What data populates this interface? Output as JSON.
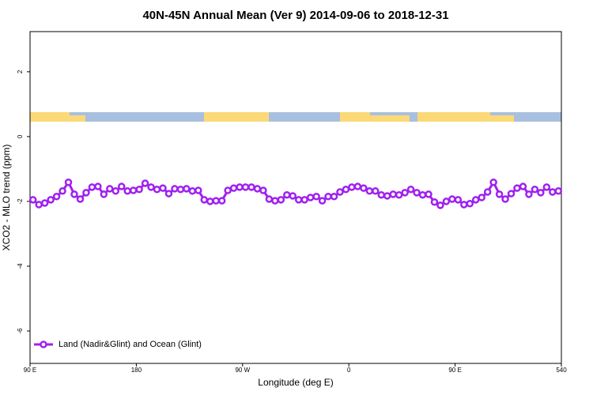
{
  "chart_data": {
    "type": "line",
    "title": "40N-45N Annual Mean (Ver 9)   2014-09-06 to 2018-12-31",
    "x_label": "Longitude (deg E)",
    "y_label": "XCO2 - MLO trend (ppm)",
    "xlim": [
      90,
      540
    ],
    "ylim": [
      -7,
      3.24
    ],
    "xticks": [
      {
        "value": 90,
        "label": "90 E"
      },
      180,
      {
        "value": 270,
        "label": "90 W"
      },
      {
        "value": 360,
        "label": "0"
      },
      {
        "value": 450,
        "label": "90 E"
      },
      540
    ],
    "yticks": [
      -6,
      -4,
      -2,
      0,
      2
    ],
    "legend": "bottom-left",
    "x": [
      92.5,
      97.5,
      102.5,
      107.5,
      112.5,
      117.5,
      122.5,
      127.5,
      132.5,
      137.5,
      142.5,
      147.5,
      152.5,
      157.5,
      162.5,
      167.5,
      172.5,
      177.5,
      182.5,
      187.5,
      192.5,
      197.5,
      202.5,
      207.5,
      212.5,
      217.5,
      222.5,
      227.5,
      232.5,
      237.5,
      242.5,
      247.5,
      252.5,
      257.5,
      262.5,
      267.5,
      272.5,
      277.5,
      282.5,
      287.5,
      292.5,
      297.5,
      302.5,
      307.5,
      312.5,
      317.5,
      322.5,
      327.5,
      332.5,
      337.5,
      342.5,
      347.5,
      352.5,
      357.5,
      362.5,
      367.5,
      372.5,
      377.5,
      382.5,
      387.5,
      392.5,
      397.5,
      402.5,
      407.5,
      412.5,
      417.5,
      422.5,
      427.5,
      432.5,
      437.5,
      442.5,
      447.5,
      452.5,
      457.5,
      462.5,
      467.5,
      472.5,
      477.5,
      482.5,
      487.5,
      492.5,
      497.5,
      502.5,
      507.5,
      512.5,
      517.5,
      522.5,
      527.5,
      532.5,
      537.5
    ],
    "series": [
      {
        "name": "Land (Nadir&Glint) and Ocean (Glint)",
        "color": "#a020f0",
        "values": [
          -1.95,
          -2.1,
          -2.05,
          -1.95,
          -1.85,
          -1.68,
          -1.41,
          -1.78,
          -1.93,
          -1.73,
          -1.56,
          -1.54,
          -1.78,
          -1.61,
          -1.68,
          -1.54,
          -1.68,
          -1.66,
          -1.63,
          -1.44,
          -1.56,
          -1.63,
          -1.59,
          -1.76,
          -1.61,
          -1.63,
          -1.61,
          -1.68,
          -1.66,
          -1.95,
          -2.0,
          -1.98,
          -1.98,
          -1.66,
          -1.59,
          -1.56,
          -1.56,
          -1.56,
          -1.61,
          -1.66,
          -1.93,
          -1.98,
          -1.95,
          -1.8,
          -1.83,
          -1.95,
          -1.95,
          -1.88,
          -1.85,
          -1.98,
          -1.85,
          -1.85,
          -1.71,
          -1.63,
          -1.56,
          -1.54,
          -1.59,
          -1.68,
          -1.68,
          -1.8,
          -1.83,
          -1.78,
          -1.8,
          -1.73,
          -1.63,
          -1.73,
          -1.8,
          -1.78,
          -2.02,
          -2.12,
          -2.0,
          -1.93,
          -1.95,
          -2.1,
          -2.07,
          -1.95,
          -1.88,
          -1.71,
          -1.41,
          -1.78,
          -1.93,
          -1.76,
          -1.59,
          -1.54,
          -1.78,
          -1.63,
          -1.73,
          -1.56,
          -1.71,
          -1.68
        ]
      }
    ]
  }
}
